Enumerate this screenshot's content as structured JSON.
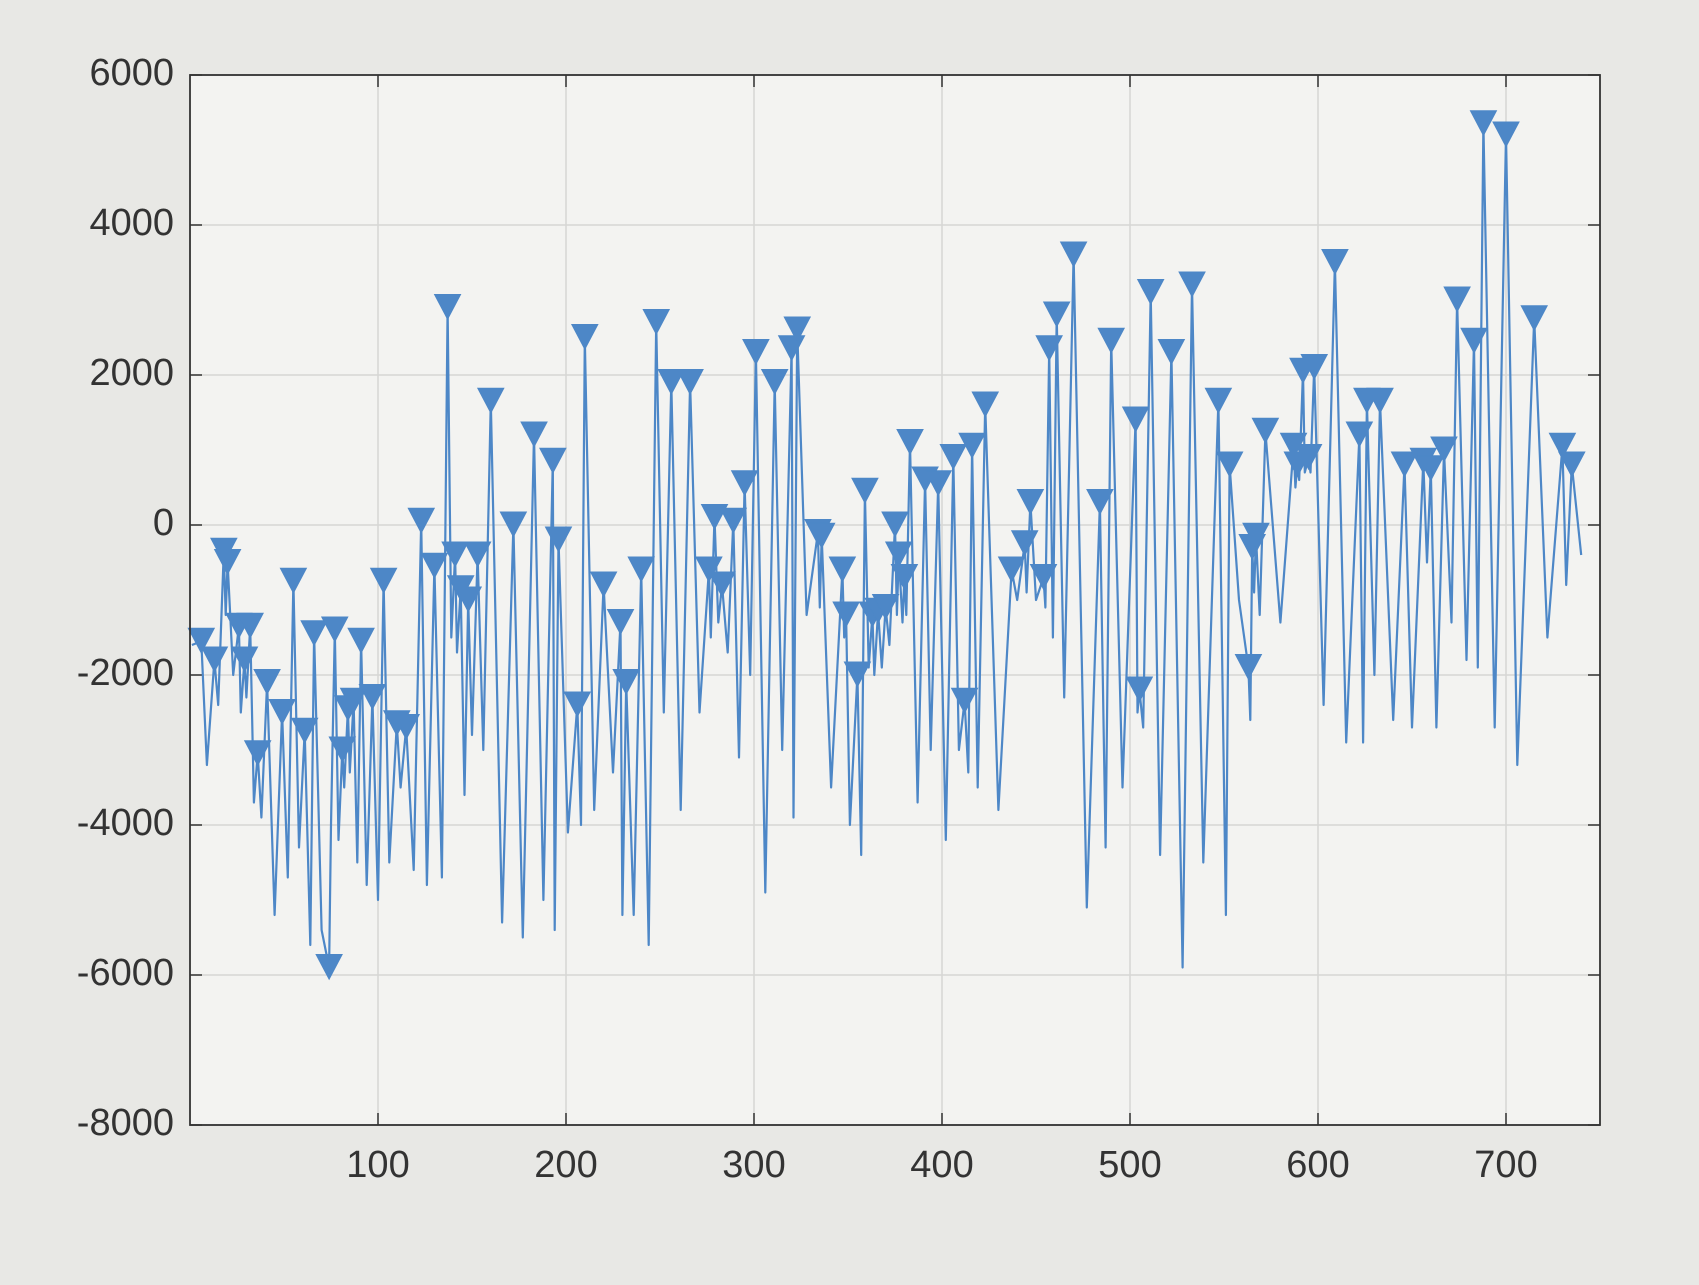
{
  "chart_data": {
    "type": "line",
    "xlim": [
      0,
      750
    ],
    "ylim": [
      -8000,
      6000
    ],
    "xticks": [
      100,
      200,
      300,
      400,
      500,
      600,
      700
    ],
    "yticks": [
      -8000,
      -6000,
      -4000,
      -2000,
      0,
      2000,
      4000,
      6000
    ],
    "grid": true,
    "series": [
      {
        "color": "#4d87c7",
        "marker": "none",
        "x": [
          1,
          6,
          9,
          13,
          15,
          18,
          19,
          20,
          23,
          26,
          27,
          29,
          30,
          32,
          34,
          36,
          38,
          41,
          45,
          49,
          52,
          55,
          58,
          61,
          64,
          66,
          70,
          74,
          75,
          77,
          79,
          81,
          82,
          84,
          85,
          87,
          89,
          91,
          94,
          97,
          100,
          103,
          106,
          110,
          112,
          115,
          119,
          123,
          126,
          130,
          134,
          137,
          139,
          141,
          142,
          144,
          146,
          148,
          150,
          153,
          156,
          160,
          166,
          172,
          177,
          183,
          188,
          193,
          194,
          196,
          201,
          206,
          208,
          210,
          215,
          220,
          225,
          229,
          230,
          232,
          236,
          240,
          244,
          248,
          252,
          256,
          261,
          266,
          271,
          276,
          277,
          279,
          281,
          283,
          286,
          289,
          292,
          295,
          298,
          301,
          306,
          311,
          315,
          320,
          321,
          323,
          328,
          334,
          335,
          336,
          341,
          347,
          348,
          349,
          351,
          355,
          357,
          359,
          361,
          363,
          364,
          366,
          368,
          370,
          372,
          375,
          376,
          377,
          379,
          380,
          381,
          383,
          387,
          391,
          394,
          398,
          402,
          406,
          409,
          412,
          414,
          416,
          419,
          423,
          430,
          437,
          440,
          444,
          445,
          447,
          450,
          454,
          455,
          457,
          459,
          461,
          465,
          470,
          477,
          484,
          487,
          490,
          496,
          503,
          504,
          505,
          507,
          511,
          516,
          522,
          528,
          533,
          539,
          547,
          551,
          553,
          558,
          563,
          564,
          565,
          566,
          567,
          569,
          572,
          580,
          587,
          588,
          589,
          590,
          592,
          593,
          595,
          596,
          598,
          603,
          609,
          615,
          622,
          624,
          626,
          630,
          633,
          640,
          646,
          650,
          656,
          658,
          660,
          663,
          667,
          671,
          674,
          679,
          683,
          685,
          688,
          694,
          700,
          706,
          715,
          722,
          730,
          732,
          735,
          740
        ],
        "values": [
          -1600,
          -1550,
          -3200,
          -1800,
          -2400,
          -350,
          -1200,
          -500,
          -2000,
          -1350,
          -2500,
          -1800,
          -2300,
          -1350,
          -3700,
          -3050,
          -3900,
          -2100,
          -5200,
          -2500,
          -4700,
          -750,
          -4300,
          -2750,
          -5600,
          -1450,
          -5400,
          -5900,
          -4000,
          -1400,
          -4200,
          -3000,
          -3500,
          -2450,
          -3300,
          -2350,
          -4500,
          -1550,
          -4800,
          -2300,
          -5000,
          -750,
          -4500,
          -2650,
          -3500,
          -2700,
          -4600,
          50,
          -4800,
          -550,
          -4700,
          2900,
          -1500,
          -400,
          -1700,
          -850,
          -3600,
          -1000,
          -2800,
          -400,
          -3000,
          1650,
          -5300,
          0,
          -5500,
          1200,
          -5000,
          850,
          -5400,
          -200,
          -4100,
          -2400,
          -4000,
          2500,
          -3800,
          -800,
          -3300,
          -1300,
          -5200,
          -2100,
          -5200,
          -600,
          -5600,
          2700,
          -2500,
          1900,
          -3800,
          1900,
          -2500,
          -600,
          -1500,
          100,
          -1300,
          -800,
          -1700,
          50,
          -3100,
          550,
          -2000,
          2300,
          -4900,
          1900,
          -3000,
          2350,
          -3900,
          2600,
          -1200,
          -100,
          -1100,
          -150,
          -3500,
          -600,
          -1500,
          -1200,
          -4000,
          -2000,
          -4400,
          450,
          -1900,
          -1200,
          -2000,
          -1150,
          -1900,
          -1100,
          -1600,
          0,
          -1200,
          -400,
          -1300,
          -700,
          -1200,
          1100,
          -3700,
          600,
          -3000,
          550,
          -4200,
          900,
          -3000,
          -2350,
          -3300,
          1050,
          -3500,
          1600,
          -3800,
          -600,
          -1000,
          -250,
          -900,
          300,
          -1000,
          -700,
          -1100,
          2350,
          -1500,
          2800,
          -2300,
          3600,
          -5100,
          300,
          -4300,
          2450,
          -3500,
          1400,
          -2500,
          -2200,
          -2700,
          3100,
          -4400,
          2300,
          -5900,
          3200,
          -4500,
          1650,
          -5200,
          800,
          -1000,
          -1900,
          -2600,
          -300,
          -900,
          -150,
          -1200,
          1250,
          -1300,
          1050,
          500,
          800,
          600,
          2050,
          700,
          900,
          700,
          2100,
          -2400,
          3500,
          -2900,
          1200,
          -2900,
          1650,
          -2000,
          1650,
          -2600,
          800,
          -2700,
          850,
          -500,
          750,
          -2700,
          1000,
          -1300,
          3000,
          -1800,
          2450,
          -1900,
          5350,
          -2700,
          5200,
          -3200,
          2750,
          -1500,
          1050,
          -800,
          800,
          -400
        ]
      },
      {
        "color": "#4d87c7",
        "marker": "triangle-down",
        "x": [
          6,
          13,
          18,
          20,
          26,
          29,
          32,
          36,
          41,
          49,
          55,
          61,
          66,
          74,
          77,
          81,
          84,
          87,
          91,
          97,
          103,
          110,
          115,
          123,
          130,
          137,
          141,
          144,
          148,
          153,
          160,
          172,
          183,
          193,
          196,
          206,
          210,
          220,
          229,
          232,
          240,
          248,
          256,
          266,
          276,
          279,
          283,
          289,
          295,
          301,
          311,
          320,
          323,
          334,
          336,
          347,
          349,
          355,
          359,
          363,
          366,
          370,
          375,
          377,
          380,
          383,
          391,
          398,
          406,
          412,
          416,
          423,
          437,
          444,
          447,
          454,
          457,
          461,
          470,
          484,
          490,
          503,
          505,
          511,
          522,
          533,
          547,
          553,
          563,
          565,
          567,
          572,
          587,
          589,
          592,
          595,
          598,
          609,
          622,
          626,
          633,
          646,
          656,
          660,
          667,
          674,
          683,
          688,
          700,
          715,
          730,
          735
        ],
        "values": [
          -1550,
          -1800,
          -350,
          -500,
          -1350,
          -1800,
          -1350,
          -3050,
          -2100,
          -2500,
          -750,
          -2750,
          -1450,
          -5900,
          -1400,
          -3000,
          -2450,
          -2350,
          -1550,
          -2300,
          -750,
          -2650,
          -2700,
          50,
          -550,
          2900,
          -400,
          -850,
          -1000,
          -400,
          1650,
          0,
          1200,
          850,
          -200,
          -2400,
          2500,
          -800,
          -1300,
          -2100,
          -600,
          2700,
          1900,
          1900,
          -600,
          100,
          -800,
          50,
          550,
          2300,
          1900,
          2350,
          2600,
          -100,
          -150,
          -600,
          -1200,
          -2000,
          450,
          -1200,
          -1150,
          -1100,
          0,
          -400,
          -700,
          1100,
          600,
          550,
          900,
          -2350,
          1050,
          1600,
          -600,
          -250,
          300,
          -700,
          2350,
          2800,
          3600,
          300,
          2450,
          1400,
          -2200,
          3100,
          2300,
          3200,
          1650,
          800,
          -1900,
          -300,
          -150,
          1250,
          1050,
          800,
          2050,
          900,
          2100,
          3500,
          1200,
          1650,
          1650,
          800,
          850,
          750,
          1000,
          3000,
          2450,
          5350,
          5200,
          2750,
          1050,
          800
        ]
      }
    ]
  }
}
